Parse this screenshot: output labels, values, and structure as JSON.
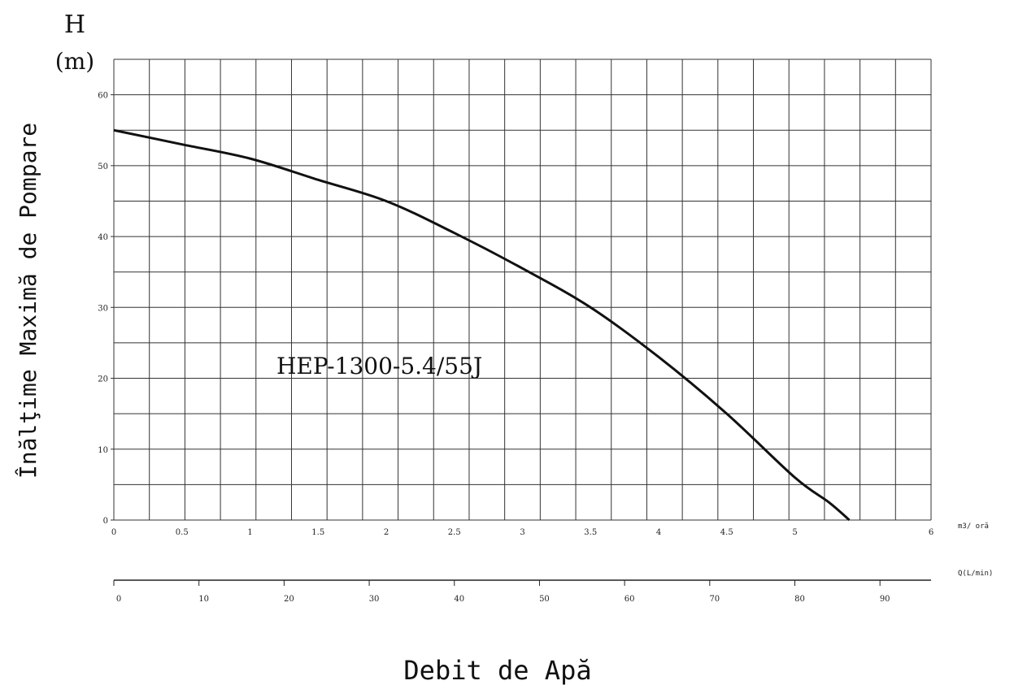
{
  "chart_data": {
    "type": "line",
    "title": "",
    "curve_label": "HEP-1300-5.4/55J",
    "ylabel": "Înălţime Maximă de Pompare",
    "ylabel_symbol": "H",
    "ylabel_unit": "(m)",
    "xlabel": "Debit de Apă",
    "x_primary": {
      "unit": "m3/ oră",
      "range": [
        0,
        6.0
      ],
      "ticks": [
        0,
        0.5,
        1,
        1.5,
        2,
        2.5,
        3,
        3.5,
        4,
        4.5,
        5,
        6
      ],
      "tick_labels": [
        "0",
        "0.5",
        "1",
        "1.5",
        "2",
        "2.5",
        "3",
        "3.5",
        "4",
        "4.5",
        "5",
        "6"
      ]
    },
    "x_secondary": {
      "unit": "Q(L/min)",
      "range": [
        0,
        96
      ],
      "ticks": [
        0,
        10,
        20,
        30,
        40,
        50,
        60,
        70,
        80,
        90
      ],
      "tick_labels": [
        "0",
        "10",
        "20",
        "30",
        "40",
        "50",
        "60",
        "70",
        "80",
        "90"
      ]
    },
    "y": {
      "range": [
        0,
        65
      ],
      "ticks": [
        0,
        10,
        20,
        30,
        40,
        50,
        60
      ],
      "tick_labels": [
        "0",
        "10",
        "20",
        "30",
        "40",
        "50",
        "60"
      ]
    },
    "grid": true,
    "series": [
      {
        "x": [
          0,
          0.5,
          1.0,
          1.5,
          2.0,
          2.5,
          3.0,
          3.5,
          4.0,
          4.5,
          5.0,
          5.25,
          5.4
        ],
        "y": [
          55,
          53,
          51,
          48,
          45,
          40.5,
          35.5,
          30,
          23,
          15,
          6,
          2.5,
          0
        ]
      }
    ]
  }
}
